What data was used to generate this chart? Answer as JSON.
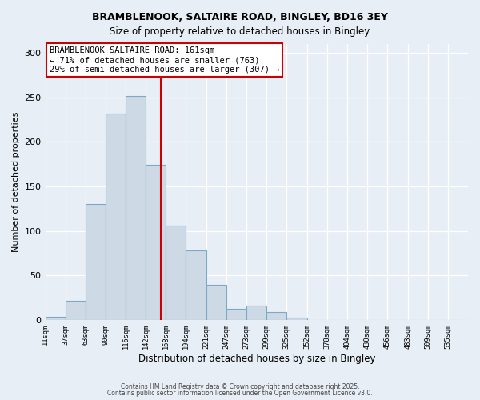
{
  "title1": "BRAMBLENOOK, SALTAIRE ROAD, BINGLEY, BD16 3EY",
  "title2": "Size of property relative to detached houses in Bingley",
  "xlabel": "Distribution of detached houses by size in Bingley",
  "ylabel": "Number of detached properties",
  "bar_color": "#cdd9e5",
  "bar_edge_color": "#7aaac8",
  "bin_labels": [
    "11sqm",
    "37sqm",
    "63sqm",
    "90sqm",
    "116sqm",
    "142sqm",
    "168sqm",
    "194sqm",
    "221sqm",
    "247sqm",
    "273sqm",
    "299sqm",
    "325sqm",
    "352sqm",
    "378sqm",
    "404sqm",
    "430sqm",
    "456sqm",
    "483sqm",
    "509sqm",
    "535sqm"
  ],
  "bar_heights": [
    4,
    22,
    130,
    232,
    252,
    174,
    106,
    78,
    40,
    13,
    16,
    9,
    3,
    0,
    0,
    0,
    0,
    0,
    0,
    0,
    0
  ],
  "ylim": [
    0,
    310
  ],
  "yticks": [
    0,
    50,
    100,
    150,
    200,
    250,
    300
  ],
  "vline_x": 161,
  "vline_color": "#cc0000",
  "bin_edges_values": [
    11,
    37,
    63,
    90,
    116,
    142,
    168,
    194,
    221,
    247,
    273,
    299,
    325,
    352,
    378,
    404,
    430,
    456,
    483,
    509,
    535
  ],
  "annotation_title": "BRAMBLENOOK SALTAIRE ROAD: 161sqm",
  "annotation_line1": "← 71% of detached houses are smaller (763)",
  "annotation_line2": "29% of semi-detached houses are larger (307) →",
  "annotation_box_color": "#ffffff",
  "annotation_box_edge_color": "#cc0000",
  "footer1": "Contains HM Land Registry data © Crown copyright and database right 2025.",
  "footer2": "Contains public sector information licensed under the Open Government Licence v3.0.",
  "background_color": "#e8eef5",
  "plot_bg_color": "#e8eef5"
}
